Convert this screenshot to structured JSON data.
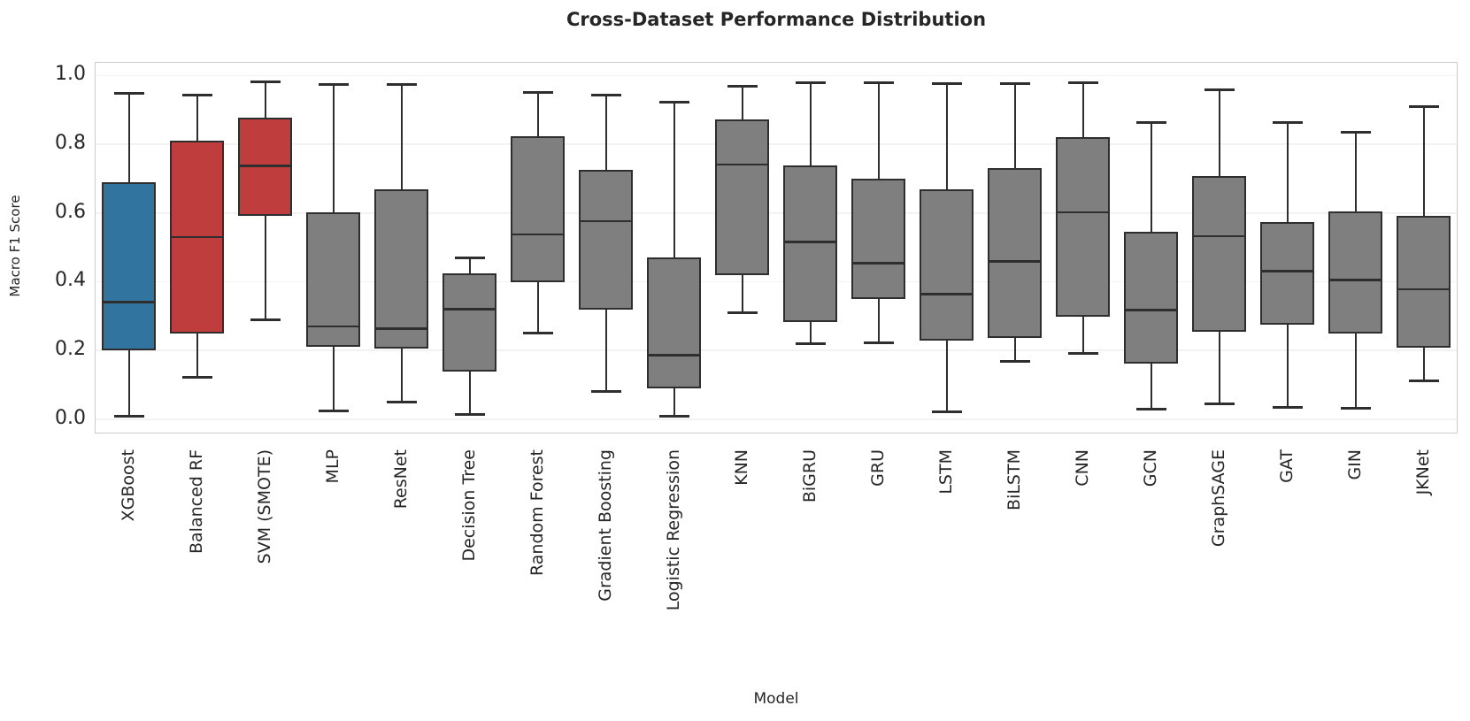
{
  "chart_data": {
    "type": "box",
    "title": "Cross-Dataset Performance Distribution",
    "xlabel": "Model",
    "ylabel": "Macro F1 Score",
    "ylim": [
      -0.044,
      1.037
    ],
    "grid": "horizontal-faint",
    "legend": "none",
    "yticks": [
      {
        "value": 0.0,
        "label": "0.0"
      },
      {
        "value": 0.2,
        "label": "0.2"
      },
      {
        "value": 0.4,
        "label": "0.4"
      },
      {
        "value": 0.6,
        "label": "0.6"
      },
      {
        "value": 0.8,
        "label": "0.8"
      },
      {
        "value": 1.0,
        "label": "1.0"
      }
    ],
    "categories": [
      "XGBoost",
      "Balanced RF",
      "SVM (SMOTE)",
      "MLP",
      "ResNet",
      "Decision Tree",
      "Random Forest",
      "Gradient Boosting",
      "Logistic Regression",
      "KNN",
      "BiGRU",
      "GRU",
      "LSTM",
      "BiLSTM",
      "CNN",
      "GCN",
      "GraphSAGE",
      "GAT",
      "GIN",
      "JKNet"
    ],
    "boxes": [
      {
        "model": "XGBoost",
        "whisker_low": 0.005,
        "q1": 0.198,
        "median": 0.338,
        "q3": 0.686,
        "whisker_high": 0.945,
        "fill": "#31749F"
      },
      {
        "model": "Balanced RF",
        "whisker_low": 0.12,
        "q1": 0.248,
        "median": 0.527,
        "q3": 0.808,
        "whisker_high": 0.94,
        "fill": "#C03D3D"
      },
      {
        "model": "SVM (SMOTE)",
        "whisker_low": 0.288,
        "q1": 0.59,
        "median": 0.735,
        "q3": 0.876,
        "whisker_high": 0.979,
        "fill": "#C03D3D"
      },
      {
        "model": "MLP",
        "whisker_low": 0.022,
        "q1": 0.208,
        "median": 0.267,
        "q3": 0.6,
        "whisker_high": 0.972,
        "fill": "#7F7F7F"
      },
      {
        "model": "ResNet",
        "whisker_low": 0.047,
        "q1": 0.203,
        "median": 0.261,
        "q3": 0.667,
        "whisker_high": 0.972,
        "fill": "#7F7F7F"
      },
      {
        "model": "Decision Tree",
        "whisker_low": 0.012,
        "q1": 0.136,
        "median": 0.317,
        "q3": 0.421,
        "whisker_high": 0.466,
        "fill": "#7F7F7F"
      },
      {
        "model": "Random Forest",
        "whisker_low": 0.247,
        "q1": 0.396,
        "median": 0.535,
        "q3": 0.821,
        "whisker_high": 0.947,
        "fill": "#7F7F7F"
      },
      {
        "model": "Gradient Boosting",
        "whisker_low": 0.079,
        "q1": 0.317,
        "median": 0.574,
        "q3": 0.723,
        "whisker_high": 0.941,
        "fill": "#7F7F7F"
      },
      {
        "model": "Logistic Regression",
        "whisker_low": 0.005,
        "q1": 0.088,
        "median": 0.184,
        "q3": 0.468,
        "whisker_high": 0.919,
        "fill": "#7F7F7F"
      },
      {
        "model": "KNN",
        "whisker_low": 0.307,
        "q1": 0.416,
        "median": 0.738,
        "q3": 0.87,
        "whisker_high": 0.966,
        "fill": "#7F7F7F"
      },
      {
        "model": "BiGRU",
        "whisker_low": 0.217,
        "q1": 0.28,
        "median": 0.513,
        "q3": 0.735,
        "whisker_high": 0.976,
        "fill": "#7F7F7F"
      },
      {
        "model": "GRU",
        "whisker_low": 0.221,
        "q1": 0.347,
        "median": 0.452,
        "q3": 0.697,
        "whisker_high": 0.976,
        "fill": "#7F7F7F"
      },
      {
        "model": "LSTM",
        "whisker_low": 0.02,
        "q1": 0.225,
        "median": 0.362,
        "q3": 0.666,
        "whisker_high": 0.974,
        "fill": "#7F7F7F"
      },
      {
        "model": "BiLSTM",
        "whisker_low": 0.167,
        "q1": 0.233,
        "median": 0.456,
        "q3": 0.729,
        "whisker_high": 0.975,
        "fill": "#7F7F7F"
      },
      {
        "model": "CNN",
        "whisker_low": 0.19,
        "q1": 0.296,
        "median": 0.6,
        "q3": 0.819,
        "whisker_high": 0.976,
        "fill": "#7F7F7F"
      },
      {
        "model": "GCN",
        "whisker_low": 0.027,
        "q1": 0.159,
        "median": 0.315,
        "q3": 0.542,
        "whisker_high": 0.861,
        "fill": "#7F7F7F"
      },
      {
        "model": "GraphSAGE",
        "whisker_low": 0.042,
        "q1": 0.252,
        "median": 0.53,
        "q3": 0.706,
        "whisker_high": 0.957,
        "fill": "#7F7F7F"
      },
      {
        "model": "GAT",
        "whisker_low": 0.032,
        "q1": 0.272,
        "median": 0.428,
        "q3": 0.572,
        "whisker_high": 0.86,
        "fill": "#7F7F7F"
      },
      {
        "model": "GIN",
        "whisker_low": 0.029,
        "q1": 0.246,
        "median": 0.403,
        "q3": 0.601,
        "whisker_high": 0.833,
        "fill": "#7F7F7F"
      },
      {
        "model": "JKNet",
        "whisker_low": 0.11,
        "q1": 0.206,
        "median": 0.376,
        "q3": 0.59,
        "whisker_high": 0.906,
        "fill": "#7F7F7F"
      }
    ],
    "colors": {
      "highlight_blue": "#31749F",
      "highlight_red": "#C03D3D",
      "default_box": "#7F7F7F",
      "line": "#2E2E2E",
      "spine": "#CCCCCC",
      "grid": "#F2F2F2",
      "text": "#262626",
      "background": "#FFFFFF"
    }
  }
}
